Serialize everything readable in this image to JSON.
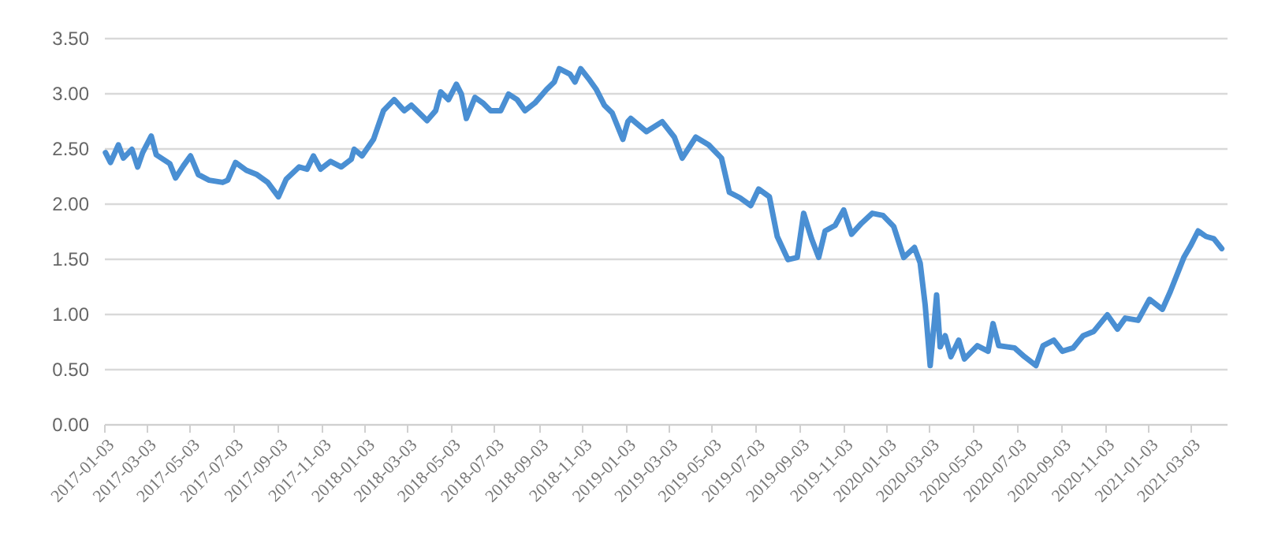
{
  "chart_data": {
    "type": "line",
    "x": [
      "2017-01-05",
      "2017-01-12",
      "2017-01-23",
      "2017-01-30",
      "2017-02-11",
      "2017-02-19",
      "2017-02-26",
      "2017-03-10",
      "2017-03-17",
      "2017-04-05",
      "2017-04-13",
      "2017-04-24",
      "2017-05-04",
      "2017-05-15",
      "2017-05-30",
      "2017-06-18",
      "2017-06-25",
      "2017-07-06",
      "2017-07-21",
      "2017-08-05",
      "2017-08-20",
      "2017-09-04",
      "2017-09-15",
      "2017-10-03",
      "2017-10-14",
      "2017-10-23",
      "2017-11-02",
      "2017-11-16",
      "2017-12-01",
      "2017-12-15",
      "2017-12-19",
      "2017-12-30",
      "2018-01-15",
      "2018-01-29",
      "2018-02-13",
      "2018-02-27",
      "2018-03-09",
      "2018-03-20",
      "2018-03-31",
      "2018-04-12",
      "2018-04-19",
      "2018-04-30",
      "2018-05-11",
      "2018-05-18",
      "2018-05-25",
      "2018-06-06",
      "2018-06-17",
      "2018-06-28",
      "2018-07-12",
      "2018-07-23",
      "2018-08-04",
      "2018-08-15",
      "2018-08-29",
      "2018-09-14",
      "2018-09-25",
      "2018-10-02",
      "2018-10-17",
      "2018-10-24",
      "2018-11-01",
      "2018-11-12",
      "2018-11-23",
      "2018-12-04",
      "2018-12-15",
      "2018-12-30",
      "2019-01-06",
      "2019-01-10",
      "2019-02-01",
      "2019-02-23",
      "2019-03-12",
      "2019-03-23",
      "2019-04-11",
      "2019-04-29",
      "2019-05-17",
      "2019-05-28",
      "2019-06-12",
      "2019-06-27",
      "2019-07-08",
      "2019-07-23",
      "2019-08-03",
      "2019-08-18",
      "2019-08-31",
      "2019-09-09",
      "2019-09-20",
      "2019-09-30",
      "2019-10-09",
      "2019-10-23",
      "2019-11-04",
      "2019-11-15",
      "2019-11-29",
      "2019-12-14",
      "2019-12-29",
      "2020-01-13",
      "2020-01-27",
      "2020-02-11",
      "2020-02-19",
      "2020-02-26",
      "2020-03-04",
      "2020-03-10",
      "2020-03-13",
      "2020-03-18",
      "2020-03-25",
      "2020-04-02",
      "2020-04-13",
      "2020-04-21",
      "2020-05-09",
      "2020-05-24",
      "2020-05-31",
      "2020-06-08",
      "2020-06-30",
      "2020-07-14",
      "2020-07-30",
      "2020-08-09",
      "2020-08-24",
      "2020-09-05",
      "2020-09-20",
      "2020-10-04",
      "2020-10-19",
      "2020-11-07",
      "2020-11-21",
      "2020-12-02",
      "2020-12-20",
      "2021-01-05",
      "2021-01-23",
      "2021-02-03",
      "2021-02-22",
      "2021-03-03",
      "2021-03-14",
      "2021-03-25",
      "2021-04-05",
      "2021-04-16"
    ],
    "series": [
      {
        "color": "#4a8fd3",
        "values": [
          2.46,
          2.37,
          2.53,
          2.41,
          2.49,
          2.33,
          2.46,
          2.61,
          2.44,
          2.36,
          2.23,
          2.34,
          2.43,
          2.26,
          2.21,
          2.19,
          2.21,
          2.37,
          2.3,
          2.26,
          2.19,
          2.06,
          2.22,
          2.33,
          2.31,
          2.43,
          2.31,
          2.38,
          2.33,
          2.4,
          2.49,
          2.43,
          2.58,
          2.84,
          2.94,
          2.84,
          2.89,
          2.82,
          2.75,
          2.84,
          3.01,
          2.94,
          3.08,
          2.99,
          2.77,
          2.96,
          2.91,
          2.84,
          2.84,
          2.99,
          2.94,
          2.84,
          2.91,
          3.03,
          3.1,
          3.22,
          3.17,
          3.1,
          3.22,
          3.13,
          3.03,
          2.89,
          2.82,
          2.58,
          2.74,
          2.77,
          2.65,
          2.74,
          2.6,
          2.41,
          2.6,
          2.53,
          2.41,
          2.1,
          2.05,
          1.98,
          2.13,
          2.06,
          1.7,
          1.49,
          1.51,
          1.91,
          1.68,
          1.51,
          1.75,
          1.8,
          1.94,
          1.72,
          1.82,
          1.91,
          1.89,
          1.79,
          1.51,
          1.6,
          1.46,
          1.08,
          0.53,
          0.94,
          1.17,
          0.7,
          0.8,
          0.61,
          0.76,
          0.59,
          0.71,
          0.66,
          0.91,
          0.71,
          0.69,
          0.61,
          0.53,
          0.71,
          0.76,
          0.66,
          0.69,
          0.8,
          0.84,
          0.99,
          0.86,
          0.96,
          0.94,
          1.13,
          1.04,
          1.2,
          1.51,
          1.61,
          1.75,
          1.7,
          1.68,
          1.59
        ]
      }
    ],
    "xlim": [
      "2017-01-03",
      "2021-04-23"
    ],
    "xticks": [
      "2017-01-03",
      "2017-03-03",
      "2017-05-03",
      "2017-07-03",
      "2017-09-03",
      "2017-11-03",
      "2018-01-03",
      "2018-03-03",
      "2018-05-03",
      "2018-07-03",
      "2018-09-03",
      "2018-11-03",
      "2019-01-03",
      "2019-03-03",
      "2019-05-03",
      "2019-07-03",
      "2019-09-03",
      "2019-11-03",
      "2020-01-03",
      "2020-03-03",
      "2020-05-03",
      "2020-07-03",
      "2020-09-03",
      "2020-11-03",
      "2021-01-03",
      "2021-03-03"
    ],
    "ylim": [
      0,
      3.5
    ],
    "yticks": [
      {
        "value": 0,
        "label": "0.00"
      },
      {
        "value": 0.5,
        "label": "0.50"
      },
      {
        "value": 1,
        "label": "1.00"
      },
      {
        "value": 1.5,
        "label": "1.50"
      },
      {
        "value": 2,
        "label": "2.00"
      },
      {
        "value": 2.5,
        "label": "2.50"
      },
      {
        "value": 3,
        "label": "3.00"
      },
      {
        "value": 3.5,
        "label": "3.50"
      }
    ],
    "grid": "y",
    "legend": false,
    "marker": "none",
    "line_style": "solid"
  }
}
